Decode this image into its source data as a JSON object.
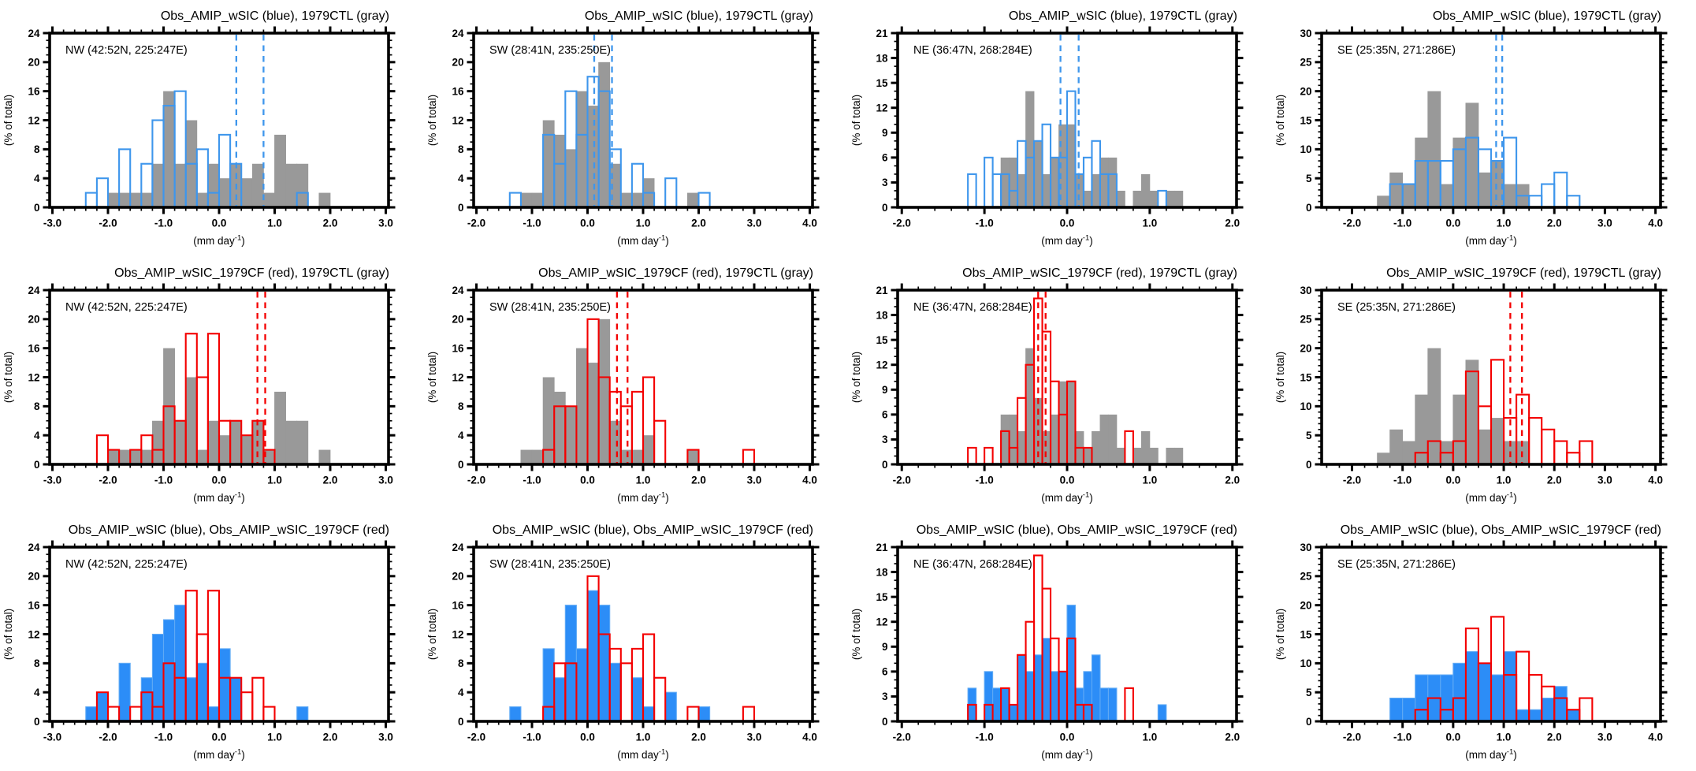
{
  "figure": {
    "background": "#FFFFFF",
    "rows": 3,
    "cols": 4,
    "row_titles": [
      "Obs_AMIP_wSIC (blue), 1979CTL (gray)",
      "Obs_AMIP_wSIC_1979CF (red), 1979CTL (gray)",
      "Obs_AMIP_wSIC (blue), Obs_AMIP_wSIC_1979CF (red)"
    ],
    "region_labels": [
      "NW (42:52N, 225:247E)",
      "SW (28:41N, 235:250E)",
      "NE (36:47N, 268:284E)",
      "SE (25:35N, 271:286E)"
    ]
  },
  "colors": {
    "gray_fill": "#999999",
    "blue": "#3E96EC",
    "blue_fill": "#2C8DF7",
    "blue_fill_edge": "#5EA9F5",
    "red": "#F40000",
    "frame": "#000000",
    "text": "#000000",
    "background": "#FFFFFF"
  },
  "axis_labels": {
    "y": "(% of total)",
    "x_base": "(mm day",
    "x_sup": "-1",
    "x_close": ")"
  },
  "chart_data": [
    {
      "id": "r1c1",
      "type": "bar",
      "title": "Obs_AMIP_wSIC (blue), 1979CTL (gray)",
      "region_label": "NW (42:52N, 225:247E)",
      "xlabel": "(mm day-1)",
      "ylabel": "(% of total)",
      "x_range": [
        -3.05,
        3.05
      ],
      "x_major_step": 1.0,
      "x_minor_step": 0.2,
      "y_range": [
        0,
        24
      ],
      "y_major_step": 4,
      "y_minor_step": 1,
      "grid": false,
      "series": [
        {
          "name": "1979CTL",
          "style": "fill",
          "color": "gray_fill",
          "bin_start": -2.0,
          "bin_width": 0.2,
          "values": [
            2,
            2,
            2,
            2,
            6,
            16,
            6,
            12,
            2,
            6,
            4,
            6,
            4,
            6,
            2,
            10,
            6,
            6,
            0,
            2
          ]
        },
        {
          "name": "Obs_AMIP_wSIC",
          "style": "outline",
          "color": "blue",
          "bin_start": -2.4,
          "bin_width": 0.2,
          "values": [
            2,
            4,
            0,
            8,
            0,
            6,
            12,
            14,
            16,
            6,
            8,
            2,
            10,
            6,
            0,
            0,
            0,
            0,
            0,
            2
          ]
        }
      ],
      "dashed_lines": {
        "color": "blue",
        "x_values": [
          0.31,
          0.8
        ]
      }
    },
    {
      "id": "r1c2",
      "type": "bar",
      "title": "Obs_AMIP_wSIC (blue), 1979CTL (gray)",
      "region_label": "SW (28:41N, 235:250E)",
      "xlabel": "(mm day-1)",
      "ylabel": "(% of total)",
      "x_range": [
        -2.05,
        4.05
      ],
      "x_major_step": 1.0,
      "x_minor_step": 0.2,
      "y_range": [
        0,
        24
      ],
      "y_major_step": 4,
      "y_minor_step": 1,
      "grid": false,
      "series": [
        {
          "name": "1979CTL",
          "style": "fill",
          "color": "gray_fill",
          "bin_start": -1.2,
          "bin_width": 0.2,
          "values": [
            2,
            2,
            12,
            10,
            8,
            16,
            14,
            20,
            6,
            2,
            2,
            4,
            0,
            0,
            0,
            2
          ]
        },
        {
          "name": "Obs_AMIP_wSIC",
          "style": "outline",
          "color": "blue",
          "bin_start": -1.4,
          "bin_width": 0.2,
          "values": [
            2,
            0,
            0,
            10,
            6,
            16,
            10,
            18,
            16,
            8,
            0,
            6,
            2,
            0,
            4,
            0,
            0,
            2
          ]
        }
      ],
      "dashed_lines": {
        "color": "blue",
        "x_values": [
          0.12,
          0.44
        ]
      }
    },
    {
      "id": "r1c3",
      "type": "bar",
      "title": "Obs_AMIP_wSIC (blue), 1979CTL (gray)",
      "region_label": "NE (36:47N, 268:284E)",
      "xlabel": "(mm day-1)",
      "ylabel": "(% of total)",
      "x_range": [
        -2.05,
        2.05
      ],
      "x_major_step": 1.0,
      "x_minor_step": 0.2,
      "y_range": [
        0,
        21
      ],
      "y_major_step": 3,
      "y_minor_step": 1,
      "grid": false,
      "series": [
        {
          "name": "1979CTL",
          "style": "fill",
          "color": "gray_fill",
          "bin_start": -0.8,
          "bin_width": 0.1,
          "values": [
            6,
            6,
            4,
            14,
            8,
            4,
            6,
            10,
            10,
            4,
            2,
            4,
            6,
            6,
            2,
            0,
            2,
            4,
            2,
            0,
            2,
            2
          ]
        },
        {
          "name": "Obs_AMIP_wSIC",
          "style": "outline",
          "color": "blue",
          "bin_start": -1.2,
          "bin_width": 0.1,
          "values": [
            4,
            0,
            6,
            4,
            4,
            2,
            8,
            6,
            8,
            10,
            6,
            6,
            14,
            4,
            6,
            8,
            4,
            4,
            0,
            0,
            0,
            0,
            0,
            2
          ]
        }
      ],
      "dashed_lines": {
        "color": "blue",
        "x_values": [
          -0.08,
          0.14
        ]
      }
    },
    {
      "id": "r1c4",
      "type": "bar",
      "title": "Obs_AMIP_wSIC (blue), 1979CTL (gray)",
      "region_label": "SE (25:35N, 271:286E)",
      "xlabel": "(mm day-1)",
      "ylabel": "(% of total)",
      "x_range": [
        -2.6,
        4.1
      ],
      "x_major_step": 1.0,
      "x_minor_step": 0.25,
      "y_range": [
        0,
        30
      ],
      "y_major_step": 5,
      "y_minor_step": 1,
      "grid": false,
      "series": [
        {
          "name": "1979CTL",
          "style": "fill",
          "color": "gray_fill",
          "bin_start": -1.5,
          "bin_width": 0.25,
          "values": [
            2,
            6,
            4,
            12,
            20,
            4,
            12,
            18,
            6,
            8,
            4,
            4
          ]
        },
        {
          "name": "Obs_AMIP_wSIC",
          "style": "outline",
          "color": "blue",
          "bin_start": -1.25,
          "bin_width": 0.25,
          "values": [
            4,
            4,
            8,
            8,
            8,
            10,
            12,
            10,
            8,
            12,
            2,
            2,
            4,
            6,
            2
          ]
        }
      ],
      "dashed_lines": {
        "color": "blue",
        "x_values": [
          0.85,
          0.97
        ]
      }
    },
    {
      "id": "r2c1",
      "type": "bar",
      "title": "Obs_AMIP_wSIC_1979CF (red), 1979CTL (gray)",
      "region_label": "NW (42:52N, 225:247E)",
      "xlabel": "(mm day-1)",
      "ylabel": "(% of total)",
      "x_range": [
        -3.05,
        3.05
      ],
      "x_major_step": 1.0,
      "x_minor_step": 0.2,
      "y_range": [
        0,
        24
      ],
      "y_major_step": 4,
      "y_minor_step": 1,
      "grid": false,
      "series": [
        {
          "name": "1979CTL",
          "style": "fill",
          "color": "gray_fill",
          "bin_start": -2.0,
          "bin_width": 0.2,
          "values": [
            2,
            2,
            2,
            2,
            6,
            16,
            6,
            12,
            2,
            6,
            4,
            6,
            4,
            6,
            2,
            10,
            6,
            6,
            0,
            2
          ]
        },
        {
          "name": "Obs_AMIP_wSIC_1979CF",
          "style": "outline",
          "color": "red",
          "bin_start": -2.2,
          "bin_width": 0.2,
          "values": [
            4,
            2,
            0,
            2,
            4,
            2,
            8,
            6,
            18,
            12,
            18,
            6,
            6,
            4,
            6,
            2
          ]
        }
      ],
      "dashed_lines": {
        "color": "red",
        "x_values": [
          0.69,
          0.83
        ]
      }
    },
    {
      "id": "r2c2",
      "type": "bar",
      "title": "Obs_AMIP_wSIC_1979CF (red), 1979CTL (gray)",
      "region_label": "SW (28:41N, 235:250E)",
      "xlabel": "(mm day-1)",
      "ylabel": "(% of total)",
      "x_range": [
        -2.05,
        4.05
      ],
      "x_major_step": 1.0,
      "x_minor_step": 0.2,
      "y_range": [
        0,
        24
      ],
      "y_major_step": 4,
      "y_minor_step": 1,
      "grid": false,
      "series": [
        {
          "name": "1979CTL",
          "style": "fill",
          "color": "gray_fill",
          "bin_start": -1.2,
          "bin_width": 0.2,
          "values": [
            2,
            2,
            12,
            10,
            8,
            16,
            14,
            20,
            6,
            2,
            2,
            4,
            0,
            0,
            0,
            2
          ]
        },
        {
          "name": "Obs_AMIP_wSIC_1979CF",
          "style": "outline",
          "color": "red",
          "bin_start": -0.8,
          "bin_width": 0.2,
          "values": [
            2,
            8,
            8,
            0,
            20,
            12,
            10,
            8,
            10,
            12,
            6,
            0,
            0,
            2,
            0,
            0,
            0,
            0,
            2
          ]
        }
      ],
      "dashed_lines": {
        "color": "red",
        "x_values": [
          0.53,
          0.72
        ]
      }
    },
    {
      "id": "r2c3",
      "type": "bar",
      "title": "Obs_AMIP_wSIC_1979CF (red), 1979CTL (gray)",
      "region_label": "NE (36:47N, 268:284E)",
      "xlabel": "(mm day-1)",
      "ylabel": "(% of total)",
      "x_range": [
        -2.05,
        2.05
      ],
      "x_major_step": 1.0,
      "x_minor_step": 0.2,
      "y_range": [
        0,
        21
      ],
      "y_major_step": 3,
      "y_minor_step": 1,
      "grid": false,
      "series": [
        {
          "name": "1979CTL",
          "style": "fill",
          "color": "gray_fill",
          "bin_start": -0.8,
          "bin_width": 0.1,
          "values": [
            6,
            6,
            4,
            14,
            8,
            4,
            6,
            10,
            10,
            4,
            2,
            4,
            6,
            6,
            2,
            0,
            2,
            4,
            2,
            0,
            2,
            2
          ]
        },
        {
          "name": "Obs_AMIP_wSIC_1979CF",
          "style": "outline",
          "color": "red",
          "bin_start": -1.2,
          "bin_width": 0.1,
          "values": [
            2,
            0,
            2,
            0,
            4,
            2,
            8,
            12,
            20,
            16,
            10,
            6,
            10,
            2,
            2,
            0,
            0,
            0,
            0,
            4
          ]
        }
      ],
      "dashed_lines": {
        "color": "red",
        "x_values": [
          -0.35,
          -0.26
        ]
      }
    },
    {
      "id": "r2c4",
      "type": "bar",
      "title": "Obs_AMIP_wSIC_1979CF (red), 1979CTL (gray)",
      "region_label": "SE (25:35N, 271:286E)",
      "xlabel": "(mm day-1)",
      "ylabel": "(% of total)",
      "x_range": [
        -2.6,
        4.1
      ],
      "x_major_step": 1.0,
      "x_minor_step": 0.25,
      "y_range": [
        0,
        30
      ],
      "y_major_step": 5,
      "y_minor_step": 1,
      "grid": false,
      "series": [
        {
          "name": "1979CTL",
          "style": "fill",
          "color": "gray_fill",
          "bin_start": -1.5,
          "bin_width": 0.25,
          "values": [
            2,
            6,
            4,
            12,
            20,
            4,
            12,
            18,
            6,
            8,
            4,
            4
          ]
        },
        {
          "name": "Obs_AMIP_wSIC_1979CF",
          "style": "outline",
          "color": "red",
          "bin_start": -0.75,
          "bin_width": 0.25,
          "values": [
            2,
            4,
            2,
            4,
            16,
            10,
            18,
            8,
            12,
            8,
            6,
            4,
            2,
            4
          ]
        }
      ],
      "dashed_lines": {
        "color": "red",
        "x_values": [
          1.13,
          1.36
        ]
      }
    },
    {
      "id": "r3c1",
      "type": "bar",
      "title": "Obs_AMIP_wSIC (blue), Obs_AMIP_wSIC_1979CF (red)",
      "region_label": "NW (42:52N, 225:247E)",
      "xlabel": "(mm day-1)",
      "ylabel": "(% of total)",
      "x_range": [
        -3.05,
        3.05
      ],
      "x_major_step": 1.0,
      "x_minor_step": 0.2,
      "y_range": [
        0,
        24
      ],
      "y_major_step": 4,
      "y_minor_step": 1,
      "grid": false,
      "series": [
        {
          "name": "Obs_AMIP_wSIC",
          "style": "fill_edge",
          "color": "blue_fill",
          "bin_start": -2.4,
          "bin_width": 0.2,
          "values": [
            2,
            4,
            0,
            8,
            0,
            6,
            12,
            14,
            16,
            6,
            8,
            2,
            10,
            6,
            0,
            0,
            0,
            0,
            0,
            2
          ]
        },
        {
          "name": "Obs_AMIP_wSIC_1979CF",
          "style": "outline",
          "color": "red",
          "bin_start": -2.2,
          "bin_width": 0.2,
          "values": [
            4,
            2,
            0,
            2,
            4,
            2,
            8,
            6,
            18,
            12,
            18,
            6,
            6,
            4,
            6,
            2
          ]
        }
      ]
    },
    {
      "id": "r3c2",
      "type": "bar",
      "title": "Obs_AMIP_wSIC (blue), Obs_AMIP_wSIC_1979CF (red)",
      "region_label": "SW (28:41N, 235:250E)",
      "xlabel": "(mm day-1)",
      "ylabel": "(% of total)",
      "x_range": [
        -2.05,
        4.05
      ],
      "x_major_step": 1.0,
      "x_minor_step": 0.2,
      "y_range": [
        0,
        24
      ],
      "y_major_step": 4,
      "y_minor_step": 1,
      "grid": false,
      "series": [
        {
          "name": "Obs_AMIP_wSIC",
          "style": "fill_edge",
          "color": "blue_fill",
          "bin_start": -1.4,
          "bin_width": 0.2,
          "values": [
            2,
            0,
            0,
            10,
            6,
            16,
            10,
            18,
            16,
            8,
            0,
            6,
            2,
            0,
            4,
            0,
            0,
            2
          ]
        },
        {
          "name": "Obs_AMIP_wSIC_1979CF",
          "style": "outline",
          "color": "red",
          "bin_start": -0.8,
          "bin_width": 0.2,
          "values": [
            2,
            8,
            8,
            0,
            20,
            12,
            10,
            8,
            10,
            12,
            6,
            0,
            0,
            2,
            0,
            0,
            0,
            0,
            2
          ]
        }
      ]
    },
    {
      "id": "r3c3",
      "type": "bar",
      "title": "Obs_AMIP_wSIC (blue), Obs_AMIP_wSIC_1979CF (red)",
      "region_label": "NE (36:47N, 268:284E)",
      "xlabel": "(mm day-1)",
      "ylabel": "(% of total)",
      "x_range": [
        -2.05,
        2.05
      ],
      "x_major_step": 1.0,
      "x_minor_step": 0.2,
      "y_range": [
        0,
        21
      ],
      "y_major_step": 3,
      "y_minor_step": 1,
      "grid": false,
      "series": [
        {
          "name": "Obs_AMIP_wSIC",
          "style": "fill_edge",
          "color": "blue_fill",
          "bin_start": -1.2,
          "bin_width": 0.1,
          "values": [
            4,
            0,
            6,
            4,
            4,
            2,
            8,
            6,
            8,
            10,
            6,
            6,
            14,
            4,
            6,
            8,
            4,
            4,
            0,
            0,
            0,
            0,
            0,
            2
          ]
        },
        {
          "name": "Obs_AMIP_wSIC_1979CF",
          "style": "outline",
          "color": "red",
          "bin_start": -1.2,
          "bin_width": 0.1,
          "values": [
            2,
            0,
            2,
            0,
            4,
            2,
            8,
            12,
            20,
            16,
            10,
            6,
            10,
            2,
            2,
            0,
            0,
            0,
            0,
            4
          ]
        }
      ]
    },
    {
      "id": "r3c4",
      "type": "bar",
      "title": "Obs_AMIP_wSIC (blue), Obs_AMIP_wSIC_1979CF (red)",
      "region_label": "SE (25:35N, 271:286E)",
      "xlabel": "(mm day-1)",
      "ylabel": "(% of total)",
      "x_range": [
        -2.6,
        4.1
      ],
      "x_major_step": 1.0,
      "x_minor_step": 0.25,
      "y_range": [
        0,
        30
      ],
      "y_major_step": 5,
      "y_minor_step": 1,
      "grid": false,
      "series": [
        {
          "name": "Obs_AMIP_wSIC",
          "style": "fill_edge",
          "color": "blue_fill",
          "bin_start": -1.25,
          "bin_width": 0.25,
          "values": [
            4,
            4,
            8,
            8,
            8,
            10,
            12,
            10,
            8,
            12,
            2,
            2,
            4,
            6,
            2
          ]
        },
        {
          "name": "Obs_AMIP_wSIC_1979CF",
          "style": "outline",
          "color": "red",
          "bin_start": -0.75,
          "bin_width": 0.25,
          "values": [
            2,
            4,
            2,
            4,
            16,
            10,
            18,
            8,
            12,
            8,
            6,
            4,
            2,
            4
          ]
        }
      ]
    }
  ]
}
